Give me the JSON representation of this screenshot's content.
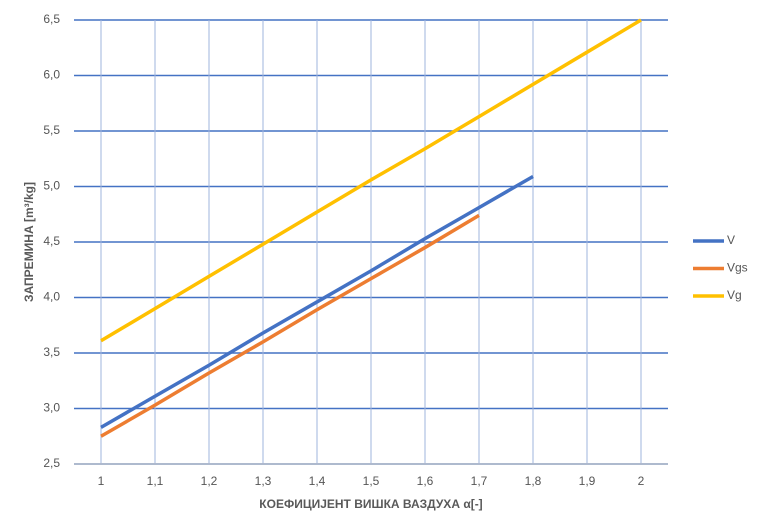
{
  "chart_data": {
    "type": "line",
    "xlabel": "КОЕФИЦИЈЕНТ ВИШКА ВАЗДУХА α[-]",
    "ylabel": "ЗАПРЕМИНА [m³/kg]",
    "series": [
      {
        "name": "V",
        "color": "#4472c4",
        "x": [
          1,
          1.1,
          1.2,
          1.3,
          1.4,
          1.5,
          1.6,
          1.7,
          1.8
        ],
        "values": [
          2.83,
          3.11,
          3.39,
          3.68,
          3.96,
          4.24,
          4.53,
          4.81,
          5.09
        ]
      },
      {
        "name": "Vgs",
        "color": "#ed7d31",
        "x": [
          1,
          1.1,
          1.2,
          1.3,
          1.4,
          1.5,
          1.6,
          1.7
        ],
        "values": [
          2.75,
          3.03,
          3.32,
          3.6,
          3.89,
          4.17,
          4.45,
          4.74
        ]
      },
      {
        "name": "Vg",
        "color": "#ffc000",
        "x": [
          1,
          1.1,
          1.2,
          1.3,
          1.4,
          1.5,
          1.6,
          1.7,
          1.8,
          1.9,
          2
        ],
        "values": [
          3.61,
          3.9,
          4.19,
          4.48,
          4.77,
          5.06,
          5.34,
          5.63,
          5.92,
          6.21,
          6.5
        ]
      }
    ],
    "xlim": [
      0.95,
      2.05
    ],
    "xticks": [
      1,
      {
        "value": 1.1,
        "label": "1,1"
      },
      {
        "value": 1.2,
        "label": "1,2"
      },
      {
        "value": 1.3,
        "label": "1,3"
      },
      {
        "value": 1.4,
        "label": "1,4"
      },
      {
        "value": 1.5,
        "label": "1,5"
      },
      {
        "value": 1.6,
        "label": "1,6"
      },
      {
        "value": 1.7,
        "label": "1,7"
      },
      {
        "value": 1.8,
        "label": "1,8"
      },
      {
        "value": 1.9,
        "label": "1,9"
      },
      2
    ],
    "ylim": [
      2.5,
      6.5
    ],
    "yticks": [
      {
        "value": 2.5,
        "label": "2,5"
      },
      {
        "value": 3,
        "label": "3,0"
      },
      {
        "value": 3.5,
        "label": "3,5"
      },
      {
        "value": 4,
        "label": "4,0"
      },
      {
        "value": 4.5,
        "label": "4,5"
      },
      {
        "value": 5,
        "label": "5,0"
      },
      {
        "value": 5.5,
        "label": "5,5"
      },
      {
        "value": 6,
        "label": "6,0"
      },
      {
        "value": 6.5,
        "label": "6,5"
      }
    ],
    "grid": true,
    "legend": "right"
  }
}
